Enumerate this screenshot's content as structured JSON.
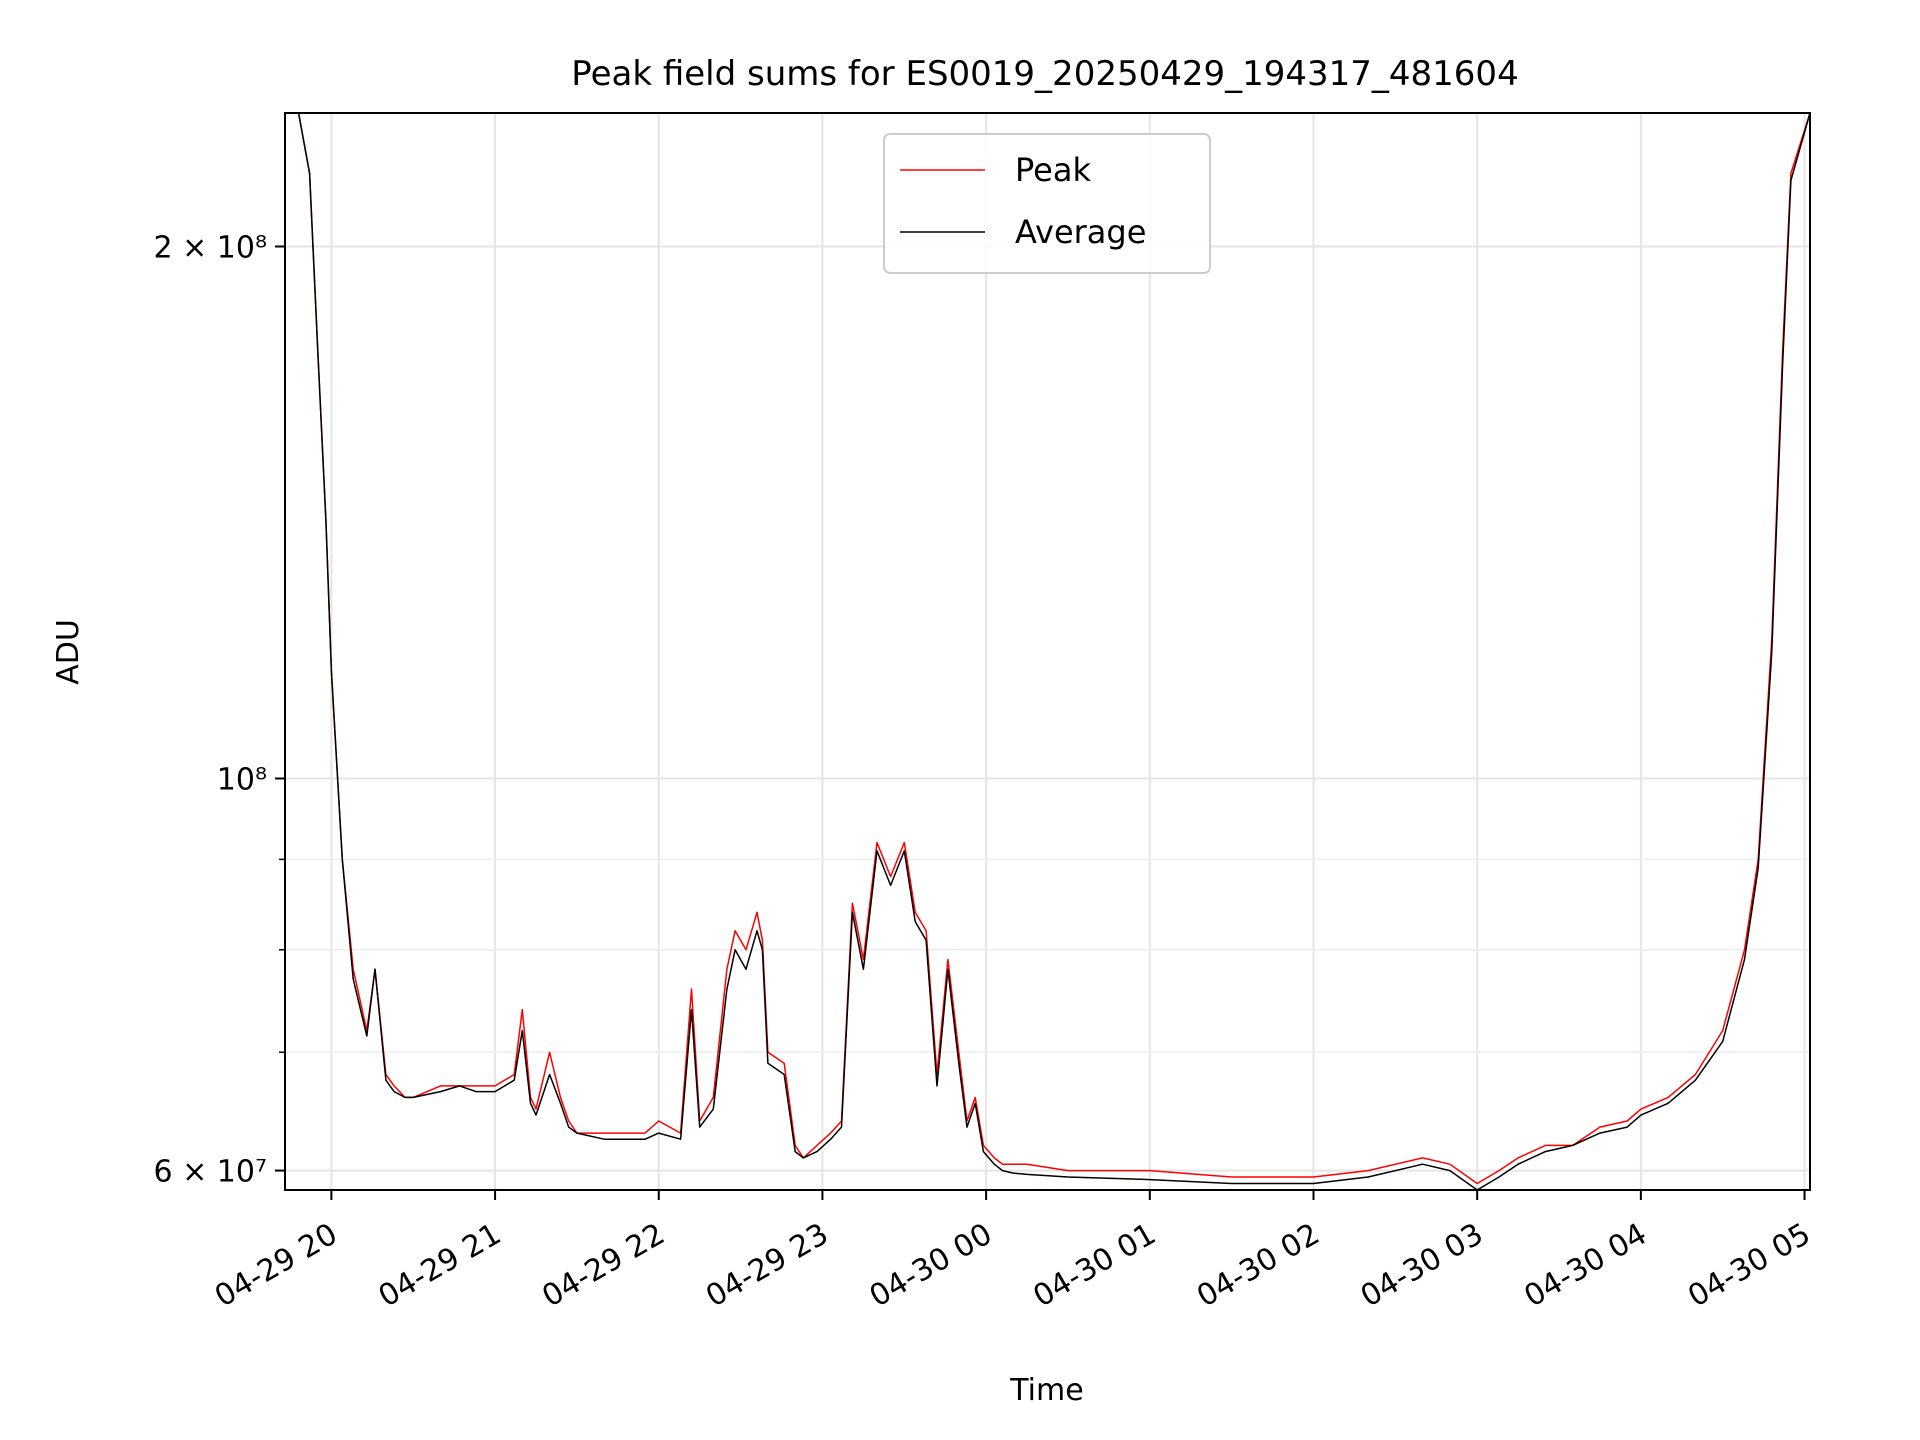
{
  "chart_data": {
    "type": "line",
    "title": "Peak field sums for ES0019_20250429_194317_481604",
    "xlabel": "Time",
    "ylabel": "ADU",
    "y_scale": "log",
    "ylim": [
      58500000,
      238000000
    ],
    "xlim": [
      "04-29 19:43",
      "04-30 05:02"
    ],
    "grid": true,
    "legend_position": "upper center",
    "x_ticks": [
      "04-29 20",
      "04-29 21",
      "04-29 22",
      "04-29 23",
      "04-30 00",
      "04-30 01",
      "04-30 02",
      "04-30 03",
      "04-30 04",
      "04-30 05"
    ],
    "y_ticks": [
      {
        "value": 60000000,
        "label": "6 × 10⁷"
      },
      {
        "value": 100000000,
        "label": "10⁸"
      },
      {
        "value": 200000000,
        "label": "2 × 10⁸"
      }
    ],
    "y_minor_ticks": [
      70000000,
      80000000,
      90000000
    ],
    "series": [
      {
        "name": "Peak",
        "color": "#ff0000",
        "x": [
          "04-29 19:43",
          "04-29 19:48",
          "04-29 19:52",
          "04-29 19:55",
          "04-29 19:58",
          "04-29 20:00",
          "04-29 20:04",
          "04-29 20:08",
          "04-29 20:13",
          "04-29 20:16",
          "04-29 20:20",
          "04-29 20:23",
          "04-29 20:27",
          "04-29 20:30",
          "04-29 20:40",
          "04-29 20:47",
          "04-29 20:53",
          "04-29 21:00",
          "04-29 21:07",
          "04-29 21:10",
          "04-29 21:13",
          "04-29 21:15",
          "04-29 21:20",
          "04-29 21:24",
          "04-29 21:27",
          "04-29 21:30",
          "04-29 21:40",
          "04-29 21:48",
          "04-29 21:55",
          "04-29 22:00",
          "04-29 22:08",
          "04-29 22:12",
          "04-29 22:15",
          "04-29 22:20",
          "04-29 22:25",
          "04-29 22:28",
          "04-29 22:32",
          "04-29 22:36",
          "04-29 22:38",
          "04-29 22:40",
          "04-29 22:46",
          "04-29 22:50",
          "04-29 22:53",
          "04-29 22:58",
          "04-29 23:03",
          "04-29 23:07",
          "04-29 23:11",
          "04-29 23:15",
          "04-29 23:20",
          "04-29 23:25",
          "04-29 23:30",
          "04-29 23:34",
          "04-29 23:38",
          "04-29 23:42",
          "04-29 23:46",
          "04-29 23:50",
          "04-29 23:53",
          "04-29 23:56",
          "04-29 23:59",
          "04-30 00:03",
          "04-30 00:06",
          "04-30 00:10",
          "04-30 00:15",
          "04-30 00:30",
          "04-30 01:00",
          "04-30 01:30",
          "04-30 02:00",
          "04-30 02:20",
          "04-30 02:40",
          "04-30 02:50",
          "04-30 03:00",
          "04-30 03:08",
          "04-30 03:15",
          "04-30 03:25",
          "04-30 03:35",
          "04-30 03:45",
          "04-30 03:55",
          "04-30 04:00",
          "04-30 04:10",
          "04-30 04:20",
          "04-30 04:30",
          "04-30 04:38",
          "04-30 04:43",
          "04-30 04:48",
          "04-30 04:52",
          "04-30 04:55",
          "04-30 05:02"
        ],
        "values": [
          238000000,
          238000000,
          220000000,
          175000000,
          140000000,
          115000000,
          90000000,
          78000000,
          72000000,
          78000000,
          68000000,
          67000000,
          66000000,
          66000000,
          67000000,
          67000000,
          67000000,
          67000000,
          68000000,
          74000000,
          66000000,
          65000000,
          70000000,
          66000000,
          64000000,
          63000000,
          63000000,
          63000000,
          63000000,
          64000000,
          63000000,
          76000000,
          64000000,
          66000000,
          78000000,
          82000000,
          80000000,
          84000000,
          81000000,
          70000000,
          69000000,
          62000000,
          61000000,
          62000000,
          63000000,
          64000000,
          85000000,
          79000000,
          92000000,
          88000000,
          92000000,
          84000000,
          82000000,
          68000000,
          79000000,
          70000000,
          64000000,
          66000000,
          62000000,
          61000000,
          60500000,
          60500000,
          60500000,
          60000000,
          60000000,
          59500000,
          59500000,
          60000000,
          61000000,
          60500000,
          59000000,
          60000000,
          61000000,
          62000000,
          62000000,
          63500000,
          64000000,
          65000000,
          66000000,
          68000000,
          72000000,
          80000000,
          90000000,
          120000000,
          175000000,
          220000000,
          238000000
        ]
      },
      {
        "name": "Average",
        "color": "#000000",
        "x": [
          "04-29 19:43",
          "04-29 19:48",
          "04-29 19:52",
          "04-29 19:55",
          "04-29 19:58",
          "04-29 20:00",
          "04-29 20:04",
          "04-29 20:08",
          "04-29 20:13",
          "04-29 20:16",
          "04-29 20:20",
          "04-29 20:23",
          "04-29 20:27",
          "04-29 20:30",
          "04-29 20:40",
          "04-29 20:47",
          "04-29 20:53",
          "04-29 21:00",
          "04-29 21:07",
          "04-29 21:10",
          "04-29 21:13",
          "04-29 21:15",
          "04-29 21:20",
          "04-29 21:24",
          "04-29 21:27",
          "04-29 21:30",
          "04-29 21:40",
          "04-29 21:48",
          "04-29 21:55",
          "04-29 22:00",
          "04-29 22:08",
          "04-29 22:12",
          "04-29 22:15",
          "04-29 22:20",
          "04-29 22:25",
          "04-29 22:28",
          "04-29 22:32",
          "04-29 22:36",
          "04-29 22:38",
          "04-29 22:40",
          "04-29 22:46",
          "04-29 22:50",
          "04-29 22:53",
          "04-29 22:58",
          "04-29 23:03",
          "04-29 23:07",
          "04-29 23:11",
          "04-29 23:15",
          "04-29 23:20",
          "04-29 23:25",
          "04-29 23:30",
          "04-29 23:34",
          "04-29 23:38",
          "04-29 23:42",
          "04-29 23:46",
          "04-29 23:50",
          "04-29 23:53",
          "04-29 23:56",
          "04-29 23:59",
          "04-30 00:03",
          "04-30 00:06",
          "04-30 00:10",
          "04-30 00:15",
          "04-30 00:30",
          "04-30 01:00",
          "04-30 01:30",
          "04-30 02:00",
          "04-30 02:20",
          "04-30 02:40",
          "04-30 02:50",
          "04-30 03:00",
          "04-30 03:08",
          "04-30 03:15",
          "04-30 03:25",
          "04-30 03:35",
          "04-30 03:45",
          "04-30 03:55",
          "04-30 04:00",
          "04-30 04:10",
          "04-30 04:20",
          "04-30 04:30",
          "04-30 04:38",
          "04-30 04:43",
          "04-30 04:48",
          "04-30 04:52",
          "04-30 04:55",
          "04-30 05:02"
        ],
        "values": [
          238000000,
          238000000,
          220000000,
          175000000,
          140000000,
          115000000,
          90000000,
          77000000,
          71500000,
          78000000,
          67500000,
          66500000,
          66000000,
          66000000,
          66500000,
          67000000,
          66500000,
          66500000,
          67500000,
          72000000,
          65500000,
          64500000,
          68000000,
          65500000,
          63500000,
          63000000,
          62500000,
          62500000,
          62500000,
          63000000,
          62500000,
          74000000,
          63500000,
          65000000,
          76000000,
          80000000,
          78000000,
          82000000,
          80000000,
          69000000,
          68000000,
          61500000,
          61000000,
          61500000,
          62500000,
          63500000,
          84000000,
          78000000,
          91000000,
          87000000,
          91000000,
          83000000,
          81000000,
          67000000,
          78000000,
          69000000,
          63500000,
          65500000,
          61500000,
          60500000,
          60000000,
          59800000,
          59700000,
          59500000,
          59300000,
          59000000,
          59000000,
          59500000,
          60500000,
          60000000,
          58500000,
          59500000,
          60500000,
          61500000,
          62000000,
          63000000,
          63500000,
          64500000,
          65500000,
          67500000,
          71000000,
          79000000,
          89000000,
          118000000,
          172000000,
          218000000,
          238000000
        ]
      }
    ]
  }
}
